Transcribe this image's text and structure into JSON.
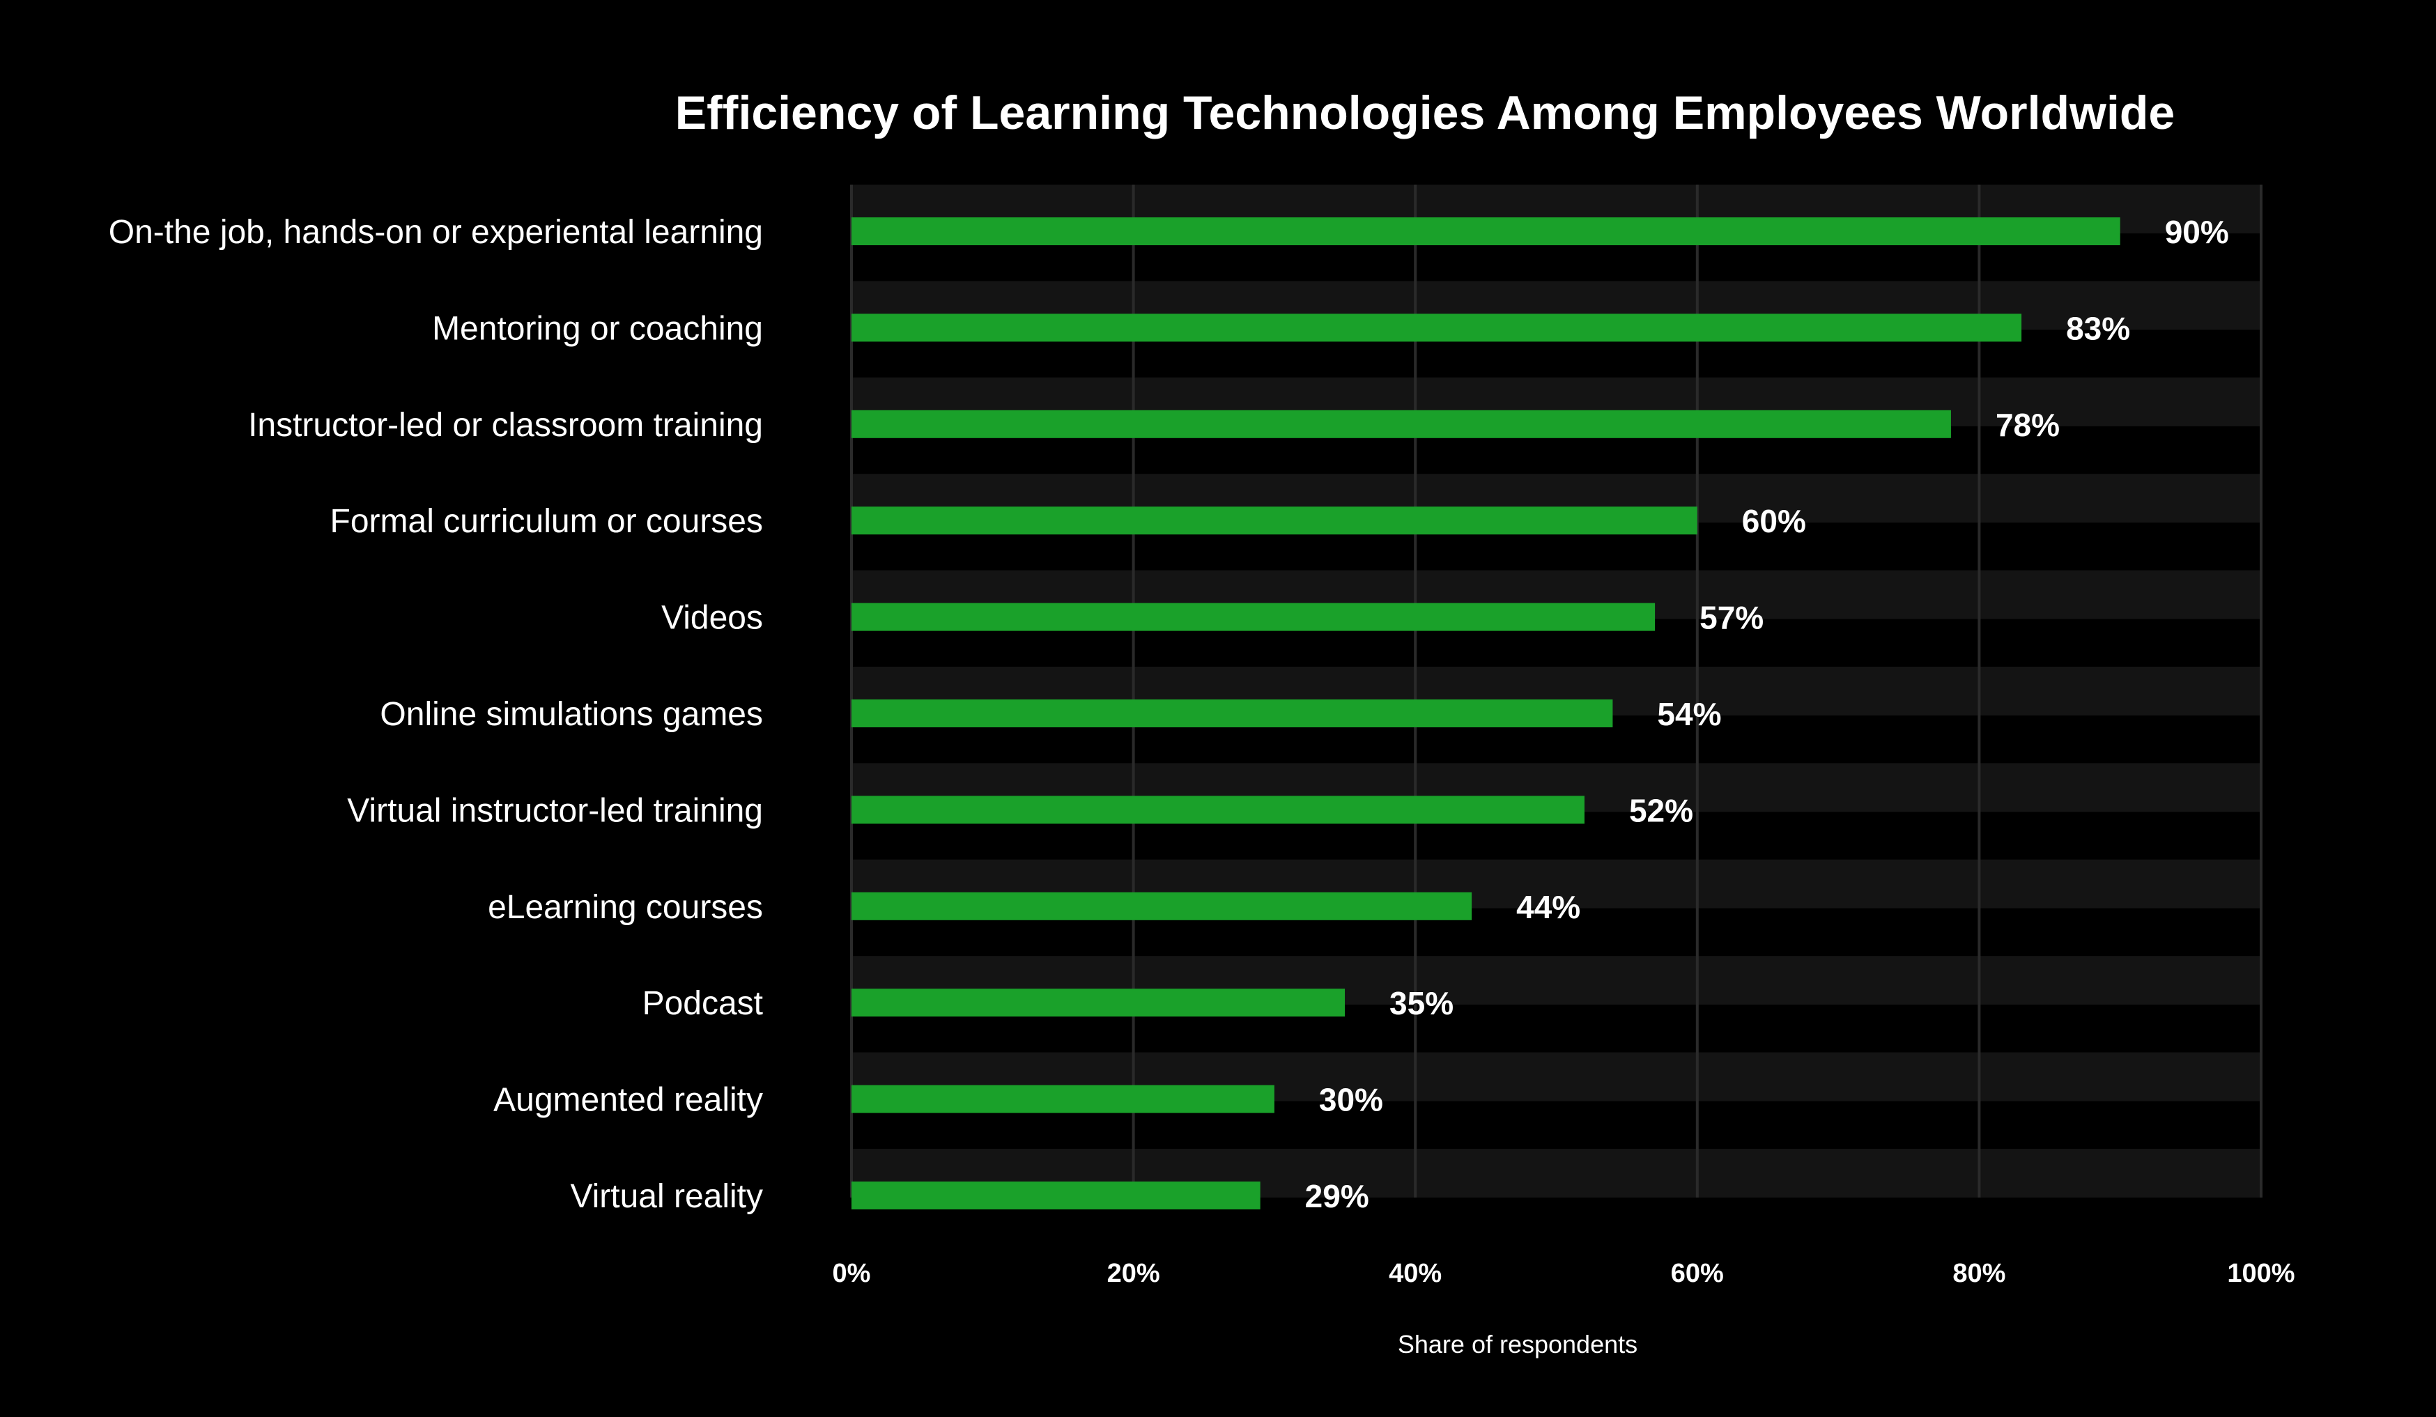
{
  "chart_data": {
    "type": "bar",
    "orientation": "horizontal",
    "title": "Efficiency of Learning Technologies Among Employees Worldwide",
    "xlabel": "Share of respondents",
    "ylabel": "",
    "categories": [
      "On-the job, hands-on or experiental learning",
      "Mentoring or coaching",
      "Instructor-led or classroom training",
      "Formal curriculum or courses",
      "Videos",
      "Online simulations games",
      "Virtual instructor-led training",
      "eLearning courses",
      "Podcast",
      "Augmented reality",
      "Virtual reality"
    ],
    "values": [
      90,
      83,
      78,
      60,
      57,
      54,
      52,
      44,
      35,
      30,
      29
    ],
    "value_labels": [
      "90%",
      "83%",
      "78%",
      "60%",
      "57%",
      "54%",
      "52%",
      "44%",
      "35%",
      "30%",
      "29%"
    ],
    "xlim": [
      0,
      100
    ],
    "xticks": [
      0,
      20,
      40,
      60,
      80,
      100
    ],
    "xtick_labels": [
      "0%",
      "20%",
      "40%",
      "60%",
      "80%",
      "100%"
    ],
    "grid": true,
    "legend": "none",
    "colors": {
      "background": "#000000",
      "bar": "#1aa12a",
      "band": "#141414",
      "gridline": "#2a2a2a",
      "text": "#ffffff"
    }
  }
}
